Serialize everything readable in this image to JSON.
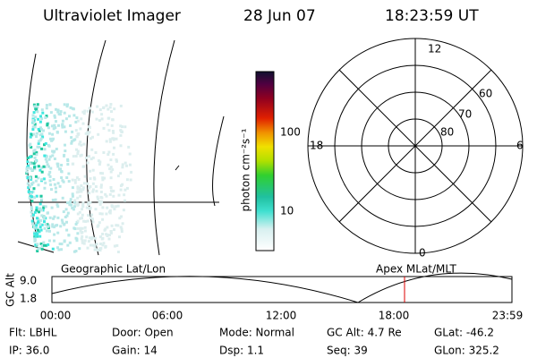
{
  "header": {
    "instrument": "Ultraviolet Imager",
    "date": "28 Jun 07",
    "time": "18:23:59 UT"
  },
  "colorbar": {
    "label": "photon cm⁻²s⁻¹",
    "ticks": [
      "100",
      "10"
    ]
  },
  "polar": {
    "mlt_labels": [
      "12",
      "6",
      "18",
      "0"
    ],
    "lat_labels": [
      "60",
      "70",
      "80"
    ]
  },
  "timeline": {
    "left_label": "Geographic Lat/Lon",
    "right_label": "Apex MLat/MLT",
    "axis_label": "GC Alt",
    "y_labels": [
      "9.0",
      "1.8"
    ],
    "time_labels": [
      "00:00",
      "06:00",
      "12:00",
      "18:00",
      "23:59"
    ]
  },
  "info": {
    "rows": [
      [
        "Flt: LBHL",
        "Door: Open",
        "Mode: Normal",
        "GC Alt: 4.7 Re",
        "GLat: -46.2"
      ],
      [
        "IP: 36.0",
        "Gain: 14",
        "Dsp:    1.1",
        "Seq: 39",
        "GLon: 325.2"
      ]
    ]
  }
}
